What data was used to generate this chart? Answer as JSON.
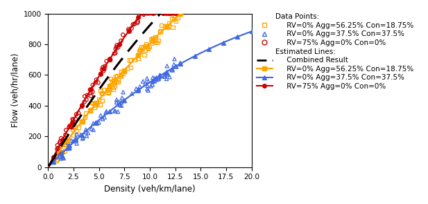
{
  "xlabel": "Density (veh/km/lane)",
  "ylabel": "Flow (veh/hr/lane)",
  "xlim": [
    0.0,
    20.0
  ],
  "ylim": [
    0,
    1000
  ],
  "xticks": [
    0.0,
    2.5,
    5.0,
    7.5,
    10.0,
    12.5,
    15.0,
    17.5,
    20.0
  ],
  "yticks": [
    0,
    200,
    400,
    600,
    800,
    1000
  ],
  "orange": {
    "color": "#FFA500",
    "marker": "s",
    "vf": 95.0,
    "alpha": 2.2,
    "rho_j": 140.0,
    "scatter_density_range": [
      0.8,
      13.0
    ],
    "scatter_n": 110,
    "scatter_noise": 22,
    "line_density_end": 20.0
  },
  "blue": {
    "color": "#4169E1",
    "marker": "^",
    "vf": 68.0,
    "alpha": 2.8,
    "rho_j": 140.0,
    "scatter_density_range": [
      0.8,
      13.0
    ],
    "scatter_n": 100,
    "scatter_noise": 20,
    "line_density_end": 20.0
  },
  "red": {
    "color": "#CC0000",
    "marker": "o",
    "vf": 130.0,
    "alpha": 2.0,
    "rho_j": 110.0,
    "scatter_density_range": [
      0.8,
      13.0
    ],
    "scatter_n": 85,
    "scatter_noise": 18,
    "line_density_end": 13.5
  },
  "combined": {
    "color": "black",
    "vf": 110.0,
    "alpha": 2.1,
    "rho_j": 125.0
  },
  "scatter_s": 14,
  "scatter_lw": 0.9,
  "line_lw": 1.6,
  "line_ms": 4,
  "line_n_markers": 15,
  "legend_fontsize": 7.5,
  "axis_fontsize": 8.5,
  "tick_fontsize": 7.5
}
